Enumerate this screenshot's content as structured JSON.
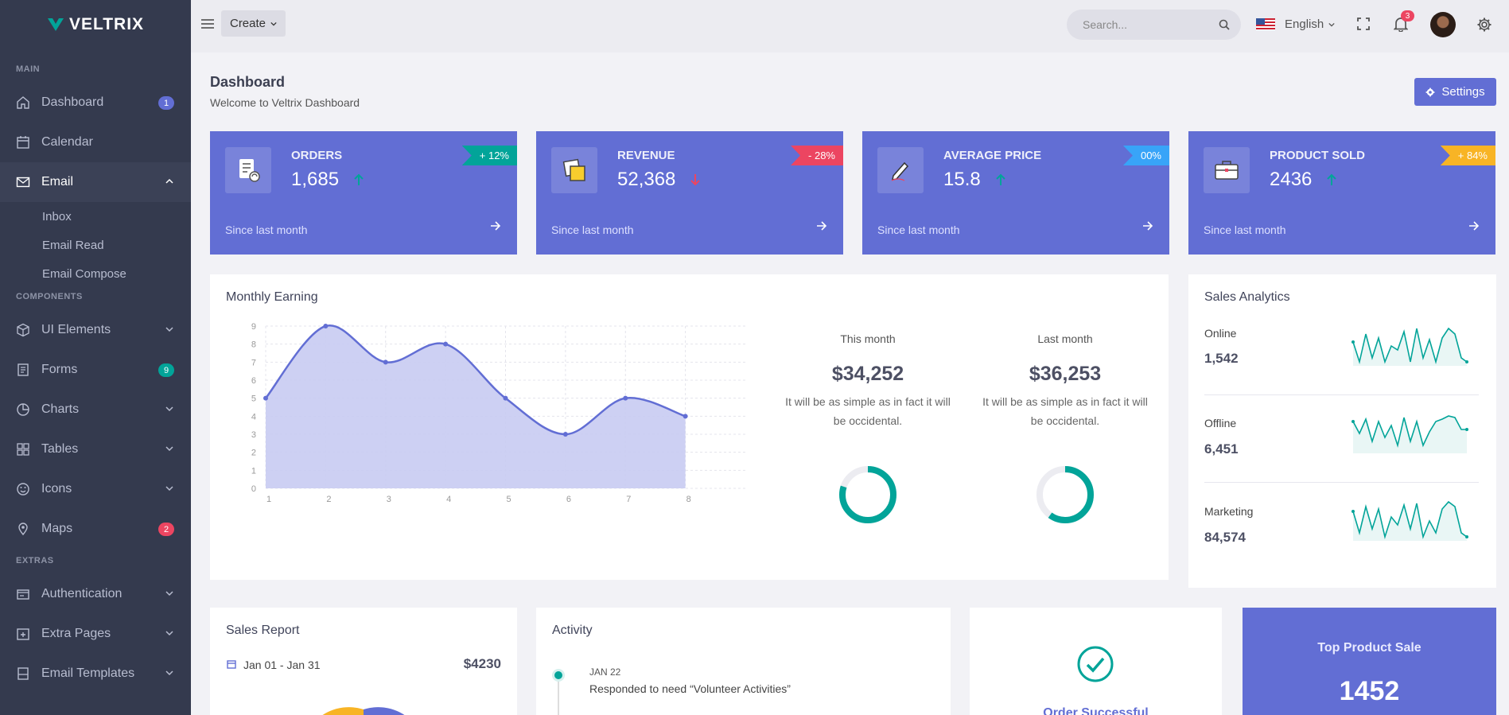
{
  "app": {
    "brand": "VELTRIX"
  },
  "sidebar": {
    "sections": {
      "main": "MAIN",
      "components": "COMPONENTS",
      "extras": "EXTRAS"
    },
    "items": {
      "dashboard": {
        "label": "Dashboard",
        "badge": "1"
      },
      "calendar": {
        "label": "Calendar"
      },
      "email": {
        "label": "Email"
      },
      "inbox": {
        "label": "Inbox"
      },
      "email_read": {
        "label": "Email Read"
      },
      "email_compose": {
        "label": "Email Compose"
      },
      "ui_elements": {
        "label": "UI Elements"
      },
      "forms": {
        "label": "Forms",
        "badge": "9"
      },
      "charts": {
        "label": "Charts"
      },
      "tables": {
        "label": "Tables"
      },
      "icons": {
        "label": "Icons"
      },
      "maps": {
        "label": "Maps",
        "badge": "2"
      },
      "authentication": {
        "label": "Authentication"
      },
      "extra_pages": {
        "label": "Extra Pages"
      },
      "email_templates": {
        "label": "Email Templates"
      }
    }
  },
  "topbar": {
    "create_label": "Create",
    "search_placeholder": "Search...",
    "language": "English",
    "notification_count": "3"
  },
  "page": {
    "title": "Dashboard",
    "subtitle": "Welcome to Veltrix Dashboard",
    "settings_label": "Settings"
  },
  "stats": [
    {
      "label": "Orders",
      "value": "1,685",
      "badge": "+ 12%",
      "since": "Since last month"
    },
    {
      "label": "Revenue",
      "value": "52,368",
      "badge": "- 28%",
      "since": "Since last month"
    },
    {
      "label": "Average Price",
      "value": "15.8",
      "badge": "00%",
      "since": "Since last month"
    },
    {
      "label": "Product Sold",
      "value": "2436",
      "badge": "+ 84%",
      "since": "Since last month"
    }
  ],
  "monthly": {
    "title": "Monthly Earning",
    "this_month": {
      "label": "This month",
      "value": "$34,252",
      "desc": "It will be as simple as in fact it will be occidental.",
      "progress": 0.8
    },
    "last_month": {
      "label": "Last month",
      "value": "$36,253",
      "desc": "It will be as simple as in fact it will be occidental.",
      "progress": 0.6
    }
  },
  "chart_data": {
    "type": "area",
    "title": "Monthly Earning",
    "x": [
      1,
      2,
      3,
      4,
      5,
      6,
      7,
      8
    ],
    "values": [
      5,
      9,
      7,
      8,
      5,
      3,
      5,
      4
    ],
    "xlim": [
      1,
      9
    ],
    "ylim": [
      0,
      9
    ],
    "yticks": [
      0,
      1,
      2,
      3,
      4,
      5,
      6,
      7,
      8,
      9
    ],
    "grid": true
  },
  "analytics": {
    "title": "Sales Analytics",
    "items": [
      {
        "name": "Online",
        "value": "1,542"
      },
      {
        "name": "Offline",
        "value": "6,451"
      },
      {
        "name": "Marketing",
        "value": "84,574"
      }
    ]
  },
  "sales_report": {
    "title": "Sales Report",
    "range": "Jan 01 - Jan 31",
    "amount": "$4230"
  },
  "activity": {
    "title": "Activity",
    "date": "JAN 22",
    "text": "Responded to need “Volunteer Activities”"
  },
  "order": {
    "text": "Order Successful"
  },
  "top_product": {
    "title": "Top Product Sale",
    "value": "1452"
  },
  "colors": {
    "primary": "#626ed4",
    "success": "#02a499",
    "danger": "#ec4561",
    "info": "#38a4f8",
    "warning": "#f8b425",
    "sidebar": "#343a4e"
  }
}
